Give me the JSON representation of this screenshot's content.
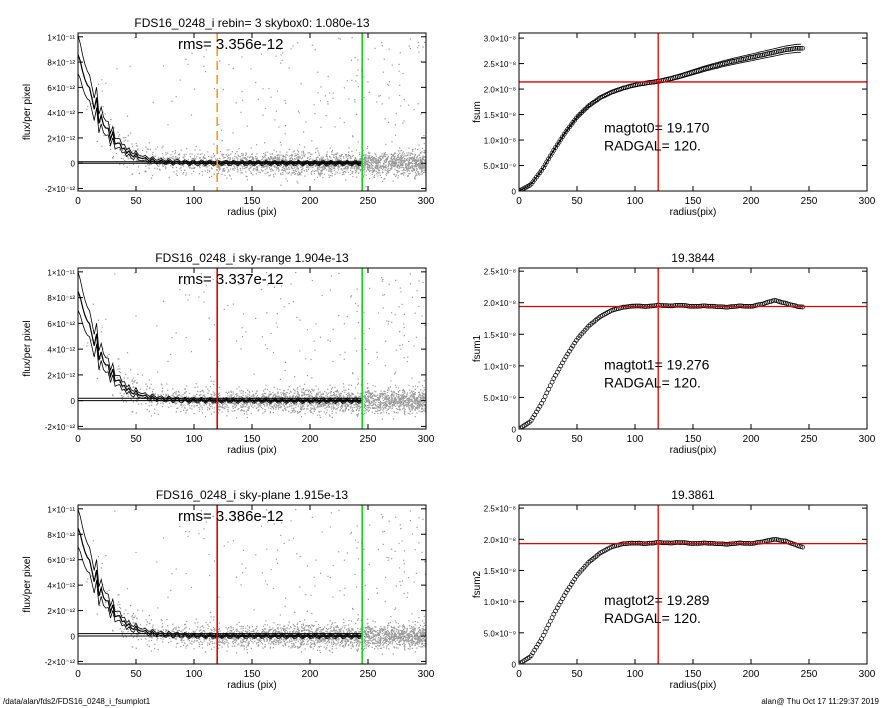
{
  "footer": {
    "path": "/data/alan/fds2/FDS16_0248_i_fsumplot1",
    "stamp": "alan@  Thu Oct 17 11:29:37 2019"
  },
  "colors": {
    "data": "#000000",
    "scatter": "#9a9a9a",
    "red": "#e00000",
    "green": "#18d018",
    "orange": "#ff9a1a"
  },
  "chart_data": [
    {
      "type": "scatter",
      "title": "FDS16_0248_i rebin= 3    skybox0:  1.080e-13",
      "annotation": "rms= 3.356e-12",
      "xlabel": "radius (pix)",
      "ylabel": "flux/per pixel",
      "xlim": [
        0,
        300
      ],
      "ylim": [
        -2.2e-12,
        1.03e-11
      ],
      "xticks": [
        "0",
        "50",
        "100",
        "150",
        "200",
        "250",
        "300"
      ],
      "yticks": [
        "-2×10⁻¹²",
        "0",
        "2×10⁻¹²",
        "4×10⁻¹²",
        "6×10⁻¹²",
        "8×10⁻¹²",
        "1×10⁻¹¹"
      ],
      "ytick_values": [
        -2e-12,
        0,
        2e-12,
        4e-12,
        6e-12,
        8e-12,
        1e-11
      ],
      "vlines": [
        {
          "x": 120,
          "color": "orange",
          "style": "dashed"
        },
        {
          "x": 245,
          "color": "green",
          "style": "solid"
        }
      ],
      "hlines": [
        0,
        1.1e-13
      ],
      "profile_x": [
        0,
        5,
        10,
        15,
        20,
        25,
        30,
        35,
        40,
        45,
        50,
        55,
        60,
        65,
        70,
        80,
        90,
        100,
        120,
        150,
        200,
        245
      ],
      "profile_y": [
        8.6e-12,
        7e-12,
        5.5e-12,
        4.6e-12,
        3.4e-12,
        2.7e-12,
        2e-12,
        1.5e-12,
        1.1e-12,
        7e-13,
        6e-13,
        4e-13,
        3e-13,
        2e-13,
        1.5e-13,
        1e-13,
        5e-14,
        3e-14,
        2e-14,
        1e-14,
        0,
        0
      ]
    },
    {
      "type": "line",
      "title": "",
      "xlabel": "radius(pix)",
      "ylabel": "fsum",
      "xlim": [
        0,
        300
      ],
      "ylim": [
        0,
        3.1e-08
      ],
      "xticks": [
        "0",
        "50",
        "100",
        "150",
        "200",
        "250",
        "300"
      ],
      "yticks": [
        "0",
        "5.0×10⁻⁹",
        "1.0×10⁻⁸",
        "1.5×10⁻⁸",
        "2.0×10⁻⁸",
        "2.5×10⁻⁸",
        "3.0×10⁻⁸"
      ],
      "ytick_values": [
        0,
        5e-09,
        1e-08,
        1.5e-08,
        2e-08,
        2.5e-08,
        3e-08
      ],
      "vline": 120,
      "hline": 2.14e-08,
      "annotation1": "magtot0=  19.170",
      "annotation2": "RADGAL=    120.",
      "x": [
        0,
        10,
        20,
        30,
        40,
        50,
        60,
        70,
        80,
        90,
        100,
        110,
        120,
        130,
        140,
        150,
        160,
        170,
        180,
        190,
        200,
        210,
        220,
        230,
        240,
        245
      ],
      "y": [
        0,
        1.2e-09,
        4.2e-09,
        8e-09,
        1.15e-08,
        1.45e-08,
        1.67e-08,
        1.83e-08,
        1.94e-08,
        2.02e-08,
        2.08e-08,
        2.12e-08,
        2.15e-08,
        2.2e-08,
        2.26e-08,
        2.33e-08,
        2.4e-08,
        2.46e-08,
        2.52e-08,
        2.57e-08,
        2.62e-08,
        2.67e-08,
        2.72e-08,
        2.77e-08,
        2.8e-08,
        2.8e-08
      ],
      "band": 8e-10
    },
    {
      "type": "scatter",
      "title": "FDS16_0248_i sky-range  1.904e-13",
      "annotation": "rms= 3.337e-12",
      "xlabel": "radius (pix)",
      "ylabel": "flux/per pixel",
      "xlim": [
        0,
        300
      ],
      "ylim": [
        -2.2e-12,
        1.03e-11
      ],
      "xticks": [
        "0",
        "50",
        "100",
        "150",
        "200",
        "250",
        "300"
      ],
      "yticks": [
        "-2×10⁻¹²",
        "0",
        "2×10⁻¹²",
        "4×10⁻¹²",
        "6×10⁻¹²",
        "8×10⁻¹²",
        "1×10⁻¹¹"
      ],
      "ytick_values": [
        -2e-12,
        0,
        2e-12,
        4e-12,
        6e-12,
        8e-12,
        1e-11
      ],
      "vlines": [
        {
          "x": 120,
          "color": "red",
          "style": "solid"
        },
        {
          "x": 245,
          "color": "green",
          "style": "solid"
        }
      ],
      "hlines": [
        0,
        1.9e-13
      ],
      "profile_x": [
        0,
        5,
        10,
        15,
        20,
        25,
        30,
        35,
        40,
        45,
        50,
        55,
        60,
        65,
        70,
        80,
        90,
        100,
        120,
        150,
        200,
        245
      ],
      "profile_y": [
        8.5e-12,
        7e-12,
        5.5e-12,
        4.6e-12,
        3.4e-12,
        2.7e-12,
        2e-12,
        1.5e-12,
        1.1e-12,
        7e-13,
        6e-13,
        4e-13,
        3e-13,
        2e-13,
        1.5e-13,
        1e-13,
        5e-14,
        3e-14,
        2e-14,
        1e-14,
        0,
        0
      ]
    },
    {
      "type": "line",
      "title": "19.3844",
      "xlabel": "radius(pix)",
      "ylabel": "fsum1",
      "xlim": [
        0,
        300
      ],
      "ylim": [
        0,
        2.55e-08
      ],
      "xticks": [
        "0",
        "50",
        "100",
        "150",
        "200",
        "250",
        "300"
      ],
      "yticks": [
        "0",
        "5.0×10⁻⁹",
        "1.0×10⁻⁸",
        "1.5×10⁻⁸",
        "2.0×10⁻⁸",
        "2.5×10⁻⁸"
      ],
      "ytick_values": [
        0,
        5e-09,
        1e-08,
        1.5e-08,
        2e-08,
        2.5e-08
      ],
      "vline": 120,
      "hline": 1.94e-08,
      "annotation1": "magtot1=  19.276",
      "annotation2": "RADGAL=    120.",
      "x": [
        0,
        10,
        20,
        30,
        40,
        50,
        60,
        70,
        80,
        90,
        100,
        110,
        120,
        130,
        140,
        150,
        160,
        170,
        180,
        190,
        200,
        210,
        220,
        230,
        240,
        245
      ],
      "y": [
        0,
        1.2e-09,
        4.2e-09,
        8e-09,
        1.13e-08,
        1.42e-08,
        1.63e-08,
        1.78e-08,
        1.88e-08,
        1.93e-08,
        1.95e-08,
        1.94e-08,
        1.96e-08,
        1.95e-08,
        1.96e-08,
        1.94e-08,
        1.95e-08,
        1.94e-08,
        1.93e-08,
        1.95e-08,
        1.94e-08,
        1.98e-08,
        2.04e-08,
        1.99e-08,
        1.94e-08,
        1.93e-08
      ],
      "band": 0
    },
    {
      "type": "scatter",
      "title": "FDS16_0248_i sky-plane  1.915e-13",
      "annotation": "rms= 3.386e-12",
      "xlabel": "radius (pix)",
      "ylabel": "flux/per pixel",
      "xlim": [
        0,
        300
      ],
      "ylim": [
        -2.2e-12,
        1.03e-11
      ],
      "xticks": [
        "0",
        "50",
        "100",
        "150",
        "200",
        "250",
        "300"
      ],
      "yticks": [
        "-2×10⁻¹²",
        "0",
        "2×10⁻¹²",
        "4×10⁻¹²",
        "6×10⁻¹²",
        "8×10⁻¹²",
        "1×10⁻¹¹"
      ],
      "ytick_values": [
        -2e-12,
        0,
        2e-12,
        4e-12,
        6e-12,
        8e-12,
        1e-11
      ],
      "vlines": [
        {
          "x": 120,
          "color": "red",
          "style": "solid"
        },
        {
          "x": 245,
          "color": "green",
          "style": "solid"
        }
      ],
      "hlines": [
        0,
        1.9e-13
      ],
      "profile_x": [
        0,
        5,
        10,
        15,
        20,
        25,
        30,
        35,
        40,
        45,
        50,
        55,
        60,
        65,
        70,
        80,
        90,
        100,
        120,
        150,
        200,
        245
      ],
      "profile_y": [
        8.5e-12,
        7e-12,
        5.5e-12,
        4.6e-12,
        3.4e-12,
        2.7e-12,
        2e-12,
        1.5e-12,
        1.1e-12,
        7e-13,
        6e-13,
        4e-13,
        3e-13,
        2e-13,
        1.5e-13,
        1e-13,
        5e-14,
        3e-14,
        2e-14,
        1e-14,
        0,
        0
      ]
    },
    {
      "type": "line",
      "title": "19.3861",
      "xlabel": "radius(pix)",
      "ylabel": "fsum2",
      "xlim": [
        0,
        300
      ],
      "ylim": [
        0,
        2.55e-08
      ],
      "xticks": [
        "0",
        "50",
        "100",
        "150",
        "200",
        "250",
        "300"
      ],
      "yticks": [
        "0",
        "5.0×10⁻⁹",
        "1.0×10⁻⁸",
        "1.5×10⁻⁸",
        "2.0×10⁻⁸",
        "2.5×10⁻⁸"
      ],
      "ytick_values": [
        0,
        5e-09,
        1e-08,
        1.5e-08,
        2e-08,
        2.5e-08
      ],
      "vline": 120,
      "hline": 1.93e-08,
      "annotation1": "magtot2=  19.289",
      "annotation2": "RADGAL=    120.",
      "x": [
        0,
        10,
        20,
        30,
        40,
        50,
        60,
        70,
        80,
        90,
        100,
        110,
        120,
        130,
        140,
        150,
        160,
        170,
        180,
        190,
        200,
        210,
        220,
        230,
        240,
        245
      ],
      "y": [
        0,
        1.2e-09,
        4.2e-09,
        8e-09,
        1.13e-08,
        1.42e-08,
        1.63e-08,
        1.78e-08,
        1.88e-08,
        1.93e-08,
        1.94e-08,
        1.93e-08,
        1.95e-08,
        1.94e-08,
        1.95e-08,
        1.93e-08,
        1.94e-08,
        1.93e-08,
        1.92e-08,
        1.94e-08,
        1.93e-08,
        1.96e-08,
        2e-08,
        1.97e-08,
        1.9e-08,
        1.87e-08
      ],
      "band": 0
    }
  ]
}
